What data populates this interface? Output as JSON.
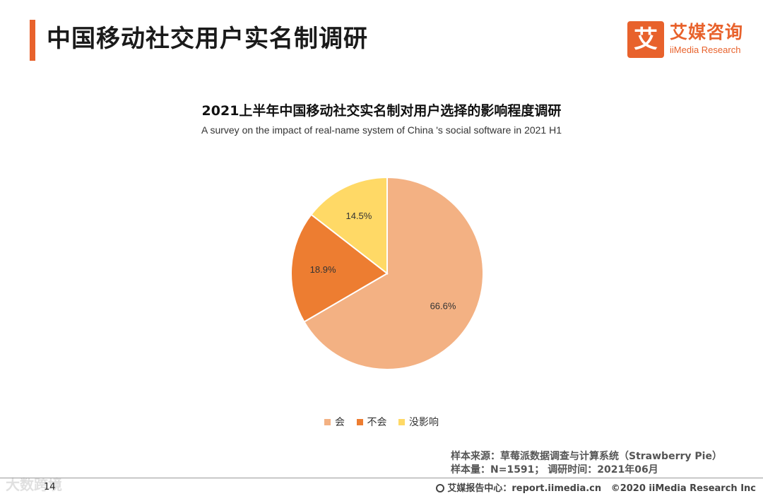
{
  "header": {
    "title": "中国移动社交用户实名制调研",
    "logo_mark": "艾",
    "logo_cn": "艾媒咨询",
    "logo_en": "iiMedia Research"
  },
  "chart_data": {
    "type": "pie",
    "title": "2021上半年中国移动社交实名制对用户选择的影响程度调研",
    "subtitle": "A survey on the impact of real-name system of China 's social software in 2021 H1",
    "categories": [
      "会",
      "不会",
      "没影响"
    ],
    "values": [
      66.6,
      18.9,
      14.5
    ],
    "labels": [
      "66.6%",
      "18.9%",
      "14.5%"
    ],
    "colors": [
      "#f3b183",
      "#ed7d31",
      "#ffd966"
    ],
    "legend_position": "bottom"
  },
  "footer": {
    "source_line1": "样本来源：草莓派数据调查与计算系统（Strawberry Pie）",
    "source_line2": "样本量：N=1591；  调研时间：2021年06月",
    "page_number": "14",
    "center_text": "艾媒报告中心：report.iimedia.cn",
    "copyright": "©2020  iiMedia Research  Inc",
    "watermark": "大数跨境"
  }
}
